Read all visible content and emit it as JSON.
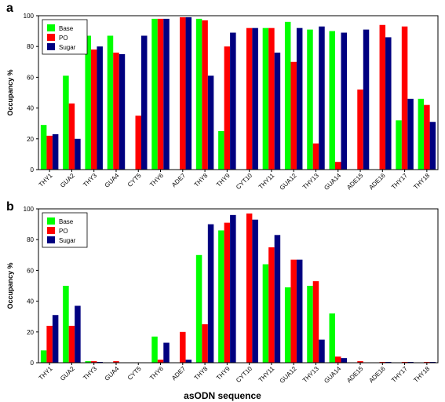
{
  "chart_data": [
    {
      "type": "bar",
      "panel_label": "a",
      "ylabel": "Occupancy %",
      "ylim": [
        0,
        100
      ],
      "yticks": [
        0,
        20,
        40,
        60,
        80,
        100
      ],
      "legend": "top-left",
      "categories": [
        "THY1",
        "GUA2",
        "THY3",
        "GUA4",
        "CYT5",
        "THY6",
        "ADE7",
        "THY8",
        "THY9",
        "CYT10",
        "THY11",
        "GUA12",
        "THY13",
        "GUA14",
        "ADE15",
        "ADE16",
        "THY17",
        "THY18"
      ],
      "series": [
        {
          "name": "Base",
          "color": "#00ff00",
          "values": [
            29,
            61,
            87,
            87,
            0,
            98,
            0,
            98,
            25,
            0,
            92,
            96,
            91,
            90,
            0,
            0,
            32,
            46
          ]
        },
        {
          "name": "PO",
          "color": "#ff0000",
          "values": [
            22,
            43,
            78,
            76,
            35,
            98,
            99,
            97,
            80,
            92,
            92,
            70,
            17,
            5,
            52,
            94,
            93,
            42
          ]
        },
        {
          "name": "Sugar",
          "color": "#000080",
          "values": [
            23,
            20,
            80,
            75,
            87,
            98,
            99,
            61,
            89,
            92,
            76,
            92,
            93,
            89,
            91,
            86,
            46,
            31
          ]
        }
      ]
    },
    {
      "type": "bar",
      "panel_label": "b",
      "ylabel": "Occupancy %",
      "xlabel": "asODN sequence",
      "ylim": [
        0,
        100
      ],
      "yticks": [
        0,
        20,
        40,
        60,
        80,
        100
      ],
      "legend": "top-left",
      "categories": [
        "THY1",
        "GUA2",
        "THY3",
        "GUA4",
        "CYT5",
        "THY6",
        "ADE7",
        "THY8",
        "THY9",
        "CYT10",
        "THY11",
        "GUA12",
        "THY13",
        "GUA14",
        "ADE15",
        "ADE16",
        "THY17",
        "THY18"
      ],
      "series": [
        {
          "name": "Base",
          "color": "#00ff00",
          "values": [
            8,
            50,
            1,
            0,
            0,
            17,
            0,
            70,
            86,
            0,
            64,
            49,
            50,
            32,
            0,
            0,
            0,
            0
          ]
        },
        {
          "name": "PO",
          "color": "#ff0000",
          "values": [
            24,
            24,
            1,
            1,
            0,
            2,
            20,
            25,
            91,
            97,
            75,
            67,
            53,
            4,
            1,
            0.5,
            0.5,
            0.5
          ]
        },
        {
          "name": "Sugar",
          "color": "#000080",
          "values": [
            31,
            37,
            0.5,
            0,
            0,
            13,
            2,
            90,
            96,
            93,
            83,
            67,
            15,
            3,
            0,
            0.5,
            0.5,
            0.5
          ]
        }
      ]
    }
  ]
}
